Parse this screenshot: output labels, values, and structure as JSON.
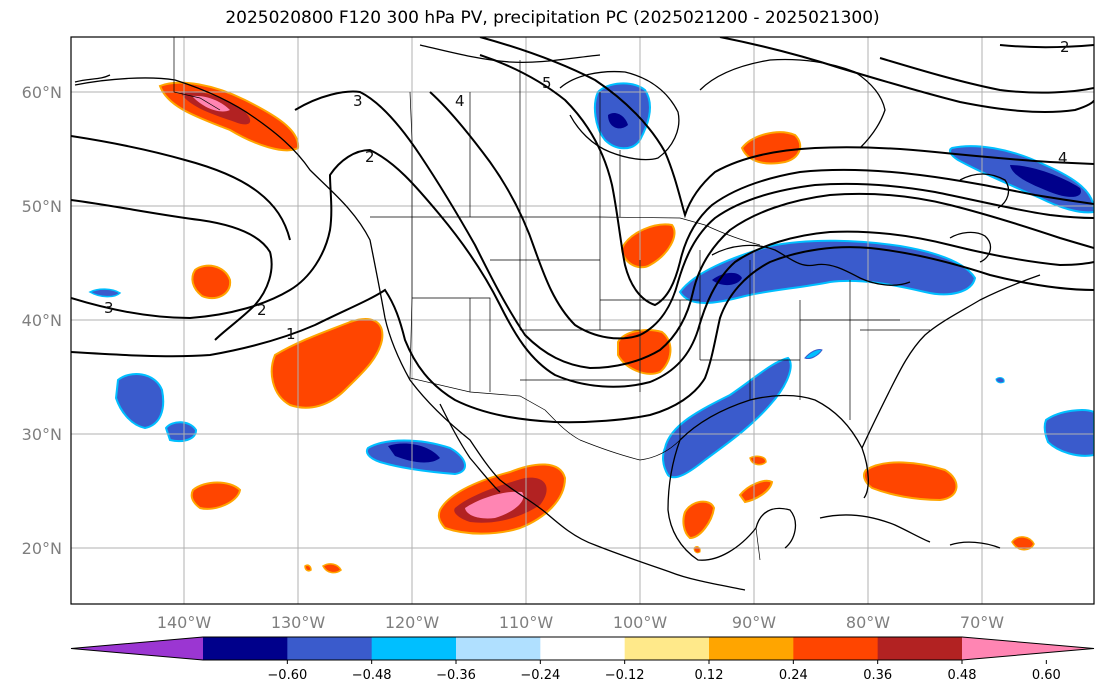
{
  "title": "2025020800 F120 300 hPa PV, precipitation PC (2025021200 - 2025021300)",
  "map": {
    "lat_labels": [
      "60°N",
      "50°N",
      "40°N",
      "30°N",
      "20°N"
    ],
    "lon_labels": [
      "140°W",
      "130°W",
      "120°W",
      "110°W",
      "100°W",
      "90°W",
      "80°W",
      "70°W"
    ],
    "contour_labels": [
      "1",
      "2",
      "2",
      "2",
      "3",
      "3",
      "4",
      "4",
      "5"
    ],
    "grid_lines": true
  },
  "colorbar": {
    "ticks": [
      "−0.60",
      "−0.48",
      "−0.36",
      "−0.24",
      "−0.12",
      "0.12",
      "0.24",
      "0.36",
      "0.48",
      "0.60"
    ],
    "colors": [
      "#9b36d2",
      "#00008b",
      "#3a5bcc",
      "#00bfff",
      "#b0e0ff",
      "#ffffff",
      "#ffe98a",
      "#ffa500",
      "#ff4500",
      "#b22222",
      "#ff85b3"
    ],
    "extend": "both"
  }
}
